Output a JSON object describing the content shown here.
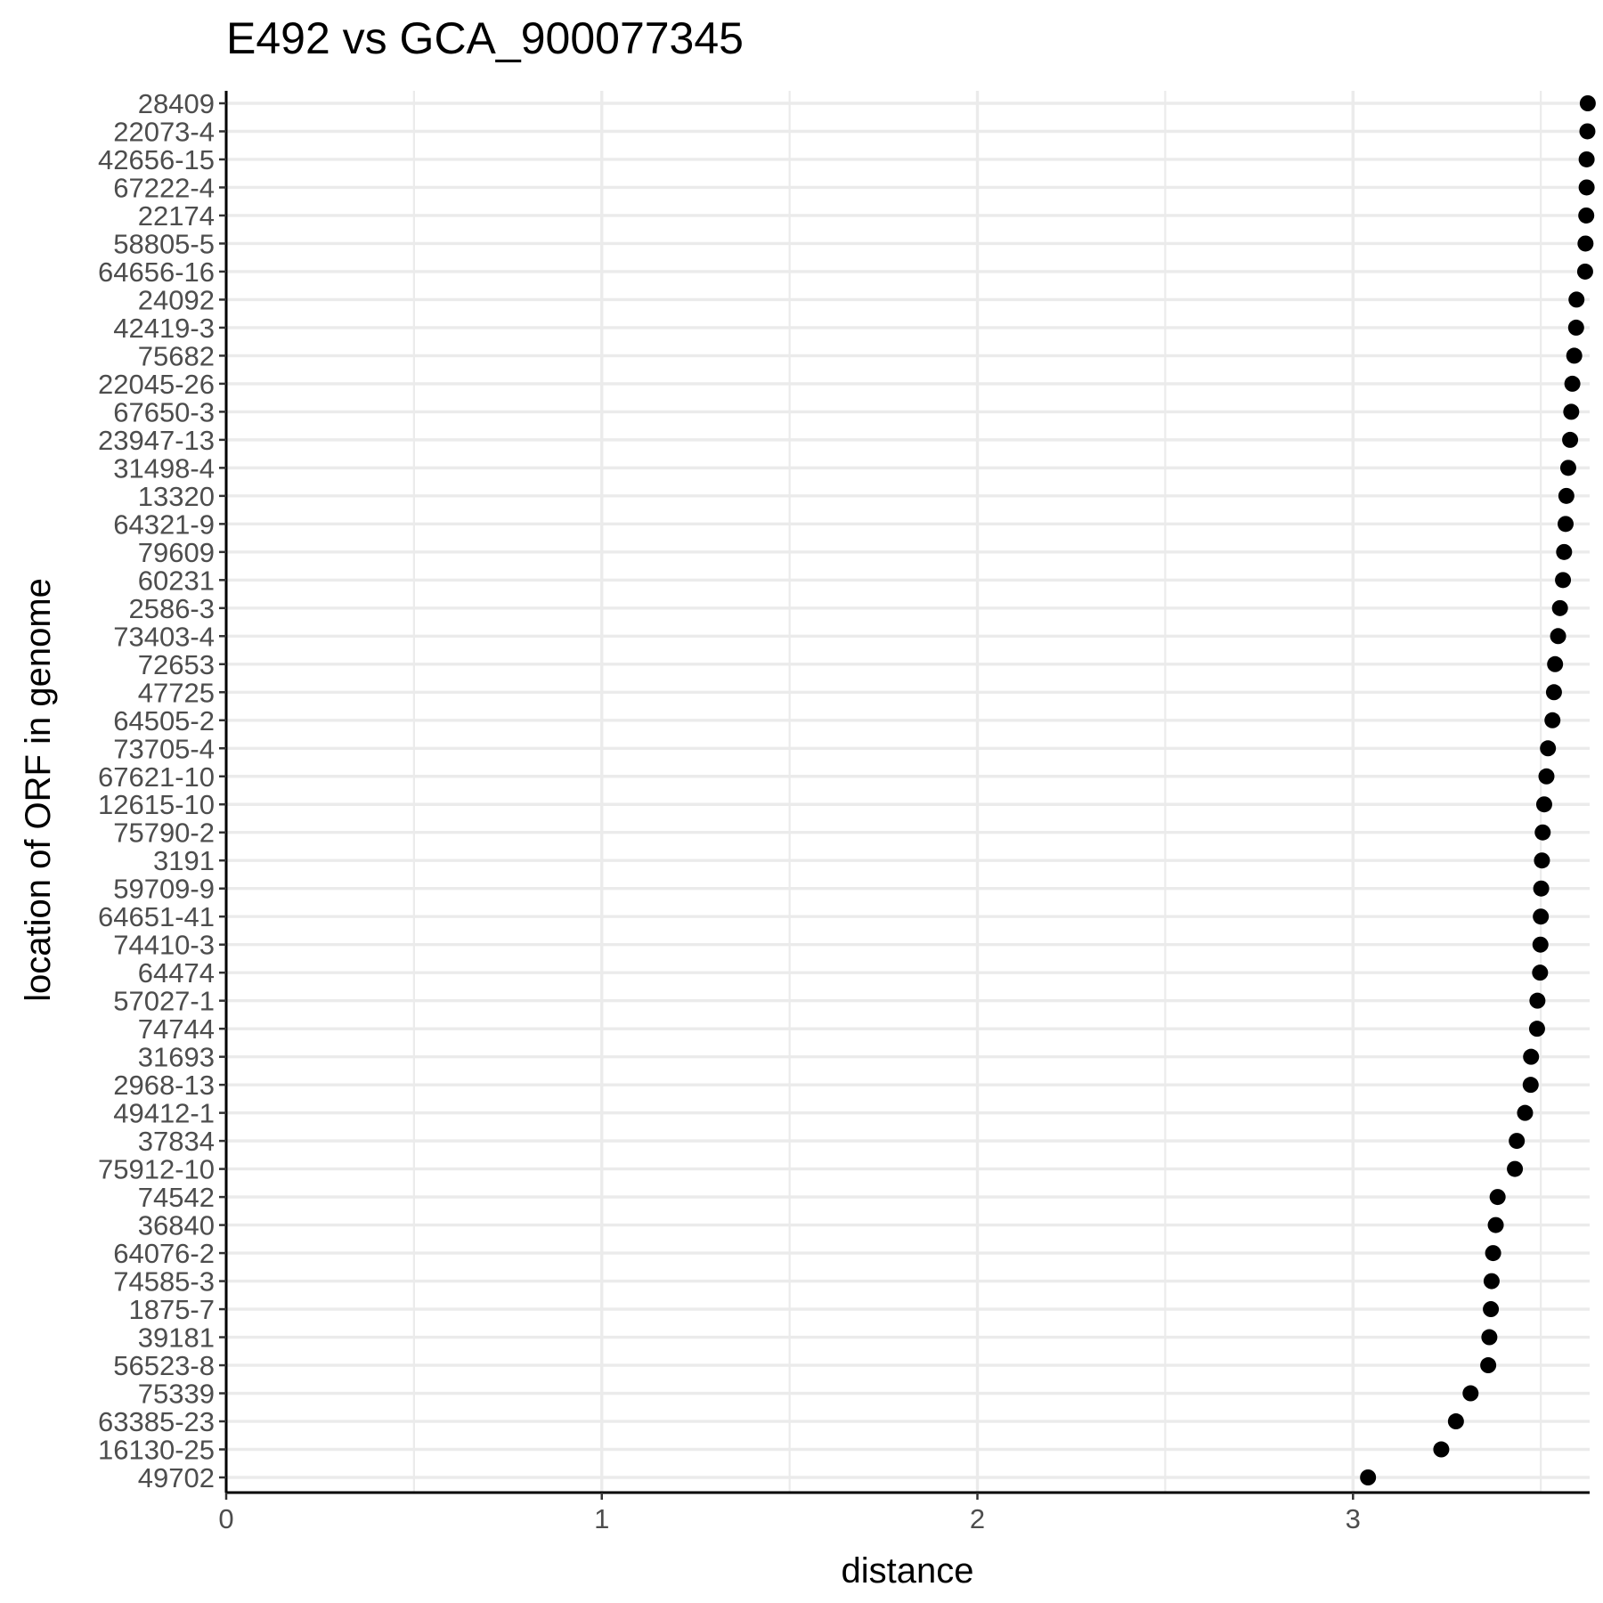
{
  "chart_data": {
    "type": "scatter",
    "title": "E492 vs GCA_900077345",
    "xlabel": "distance",
    "ylabel": "location of ORF in genome",
    "xlim": [
      0,
      3.63
    ],
    "x_ticks": [
      "0",
      "1",
      "2",
      "3"
    ],
    "grid": true,
    "legend": "none",
    "point_color": "#000000",
    "categories": [
      "28409",
      "22073-4",
      "42656-15",
      "67222-4",
      "22174",
      "58805-5",
      "64656-16",
      "24092",
      "42419-3",
      "75682",
      "22045-26",
      "67650-3",
      "23947-13",
      "31498-4",
      "13320",
      "64321-9",
      "79609",
      "60231",
      "2586-3",
      "73403-4",
      "72653",
      "47725",
      "64505-2",
      "73705-4",
      "67621-10",
      "12615-10",
      "75790-2",
      "3191",
      "59709-9",
      "64651-41",
      "74410-3",
      "64474",
      "57027-1",
      "74744",
      "31693",
      "2968-13",
      "49412-1",
      "37834",
      "75912-10",
      "74542",
      "36840",
      "64076-2",
      "74585-3",
      "1875-7",
      "39181",
      "56523-8",
      "75339",
      "63385-23",
      "16130-25",
      "49702"
    ],
    "values": [
      3.625,
      3.624,
      3.622,
      3.622,
      3.621,
      3.619,
      3.618,
      3.595,
      3.594,
      3.589,
      3.584,
      3.581,
      3.578,
      3.573,
      3.568,
      3.566,
      3.562,
      3.559,
      3.551,
      3.546,
      3.538,
      3.535,
      3.531,
      3.519,
      3.515,
      3.509,
      3.505,
      3.503,
      3.501,
      3.5,
      3.499,
      3.498,
      3.491,
      3.49,
      3.474,
      3.473,
      3.458,
      3.436,
      3.431,
      3.385,
      3.38,
      3.373,
      3.369,
      3.367,
      3.363,
      3.36,
      3.313,
      3.274,
      3.235,
      3.04
    ]
  }
}
